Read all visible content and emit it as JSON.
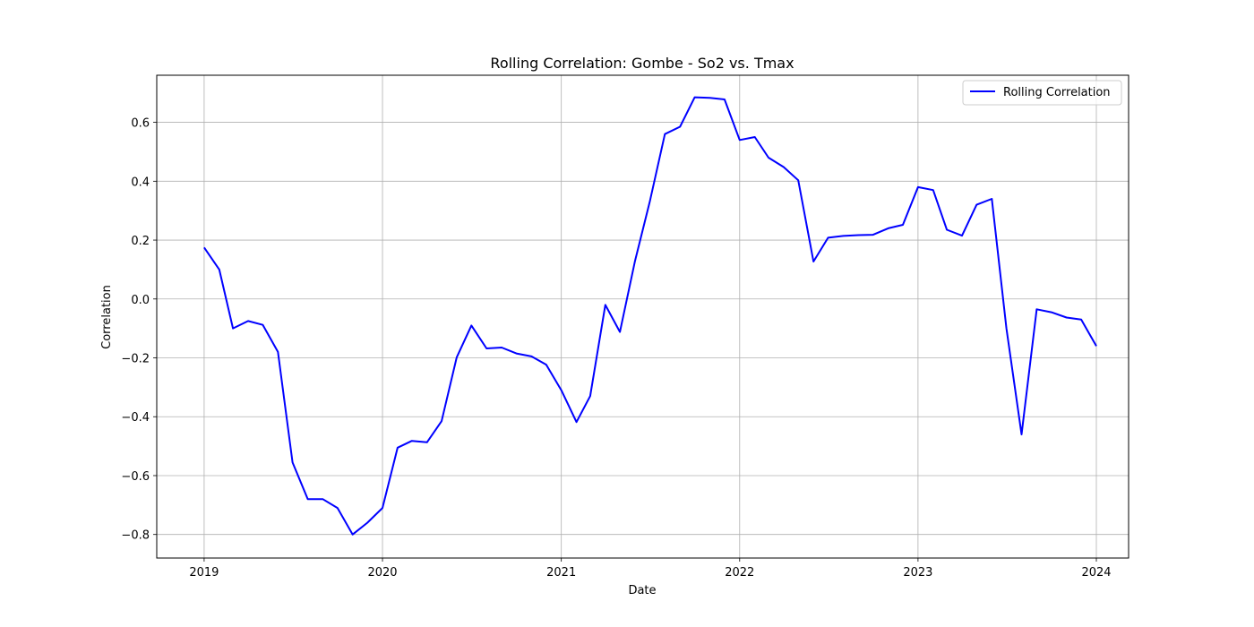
{
  "chart_data": {
    "type": "line",
    "title": "Rolling Correlation: Gombe - So2 vs. Tmax",
    "xlabel": "Date",
    "ylabel": "Correlation",
    "x_ticks": [
      "2019",
      "2020",
      "2021",
      "2022",
      "2023",
      "2024"
    ],
    "y_ticks": [
      "−0.8",
      "−0.6",
      "−0.4",
      "−0.2",
      "0.0",
      "0.2",
      "0.4",
      "0.6"
    ],
    "y_tick_values": [
      -0.8,
      -0.6,
      -0.4,
      -0.2,
      0.0,
      0.2,
      0.4,
      0.6
    ],
    "xlim": [
      "2018-09-26",
      "2024-03-07"
    ],
    "ylim": [
      -0.88,
      0.76
    ],
    "grid": true,
    "legend_position": "top-right",
    "series": [
      {
        "name": "Rolling Correlation",
        "color": "#0000ff",
        "x": [
          "2019-01",
          "2019-02",
          "2019-03",
          "2019-04",
          "2019-05",
          "2019-06",
          "2019-07",
          "2019-08",
          "2019-09",
          "2019-10",
          "2019-11",
          "2019-12",
          "2020-01",
          "2020-02",
          "2020-03",
          "2020-04",
          "2020-05",
          "2020-06",
          "2020-07",
          "2020-08",
          "2020-09",
          "2020-10",
          "2020-11",
          "2020-12",
          "2021-01",
          "2021-02",
          "2021-03",
          "2021-04",
          "2021-05",
          "2021-06",
          "2021-07",
          "2021-08",
          "2021-09",
          "2021-10",
          "2021-11",
          "2021-12",
          "2022-01",
          "2022-02",
          "2022-03",
          "2022-04",
          "2022-05",
          "2022-06",
          "2022-07",
          "2022-08",
          "2022-09",
          "2022-10",
          "2022-11",
          "2022-12",
          "2023-01",
          "2023-02",
          "2023-03",
          "2023-04",
          "2023-05",
          "2023-06",
          "2023-07",
          "2023-08",
          "2023-09",
          "2023-10",
          "2023-11",
          "2023-12",
          "2024-01"
        ],
        "y": [
          0.175,
          0.1,
          -0.1,
          -0.075,
          -0.088,
          -0.18,
          -0.555,
          -0.68,
          -0.68,
          -0.71,
          -0.8,
          -0.76,
          -0.71,
          -0.505,
          -0.482,
          -0.487,
          -0.415,
          -0.198,
          -0.09,
          -0.168,
          -0.165,
          -0.185,
          -0.195,
          -0.223,
          -0.31,
          -0.418,
          -0.33,
          -0.02,
          -0.112,
          0.13,
          0.33,
          0.56,
          0.585,
          0.685,
          0.683,
          0.678,
          0.54,
          0.55,
          0.48,
          0.448,
          0.403,
          0.127,
          0.208,
          0.214,
          0.217,
          0.218,
          0.24,
          0.252,
          0.38,
          0.37,
          0.235,
          0.215,
          0.32,
          0.34,
          -0.1,
          -0.46,
          -0.035,
          -0.045,
          -0.063,
          -0.07,
          -0.16
        ]
      }
    ]
  }
}
